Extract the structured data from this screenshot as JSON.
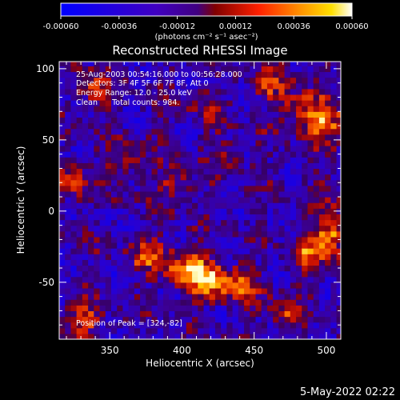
{
  "colorbar": {
    "ticks": [
      "-0.00060",
      "-0.00036",
      "-0.00012",
      "0.00012",
      "0.00036",
      "0.00060"
    ],
    "range": [
      -0.0006,
      0.0006
    ],
    "unit": "(photons cm⁻² s⁻¹ asec⁻²)"
  },
  "chart_data": {
    "type": "heatmap",
    "title": "Reconstructed RHESSI Image",
    "xlabel": "Heliocentric X (arcsec)",
    "ylabel": "Heliocentric Y (arcsec)",
    "xlim": [
      315,
      510
    ],
    "ylim": [
      -90,
      105
    ],
    "xticks": [
      350,
      400,
      450,
      500
    ],
    "yticks": [
      -50,
      0,
      50,
      100
    ],
    "annotations": [
      "25-Aug-2003 00:54:16.000 to 00:56:28.000",
      "Detectors: 3F 4F 5F 6F 7F 8F, Att 0",
      "Energy Range: 12.0 - 25.0 keV",
      "Clean      Total counts: 984."
    ],
    "peak_text": "Position of Peak = [324,-82]",
    "peak": [
      324,
      -82
    ],
    "hotspots": [
      {
        "x": 418,
        "y": -48,
        "value": 0.0006
      },
      {
        "x": 402,
        "y": -40,
        "value": 0.00052
      },
      {
        "x": 440,
        "y": -52,
        "value": 0.0004
      },
      {
        "x": 378,
        "y": -30,
        "value": 0.0004
      },
      {
        "x": 500,
        "y": 62,
        "value": 0.00055
      },
      {
        "x": 483,
        "y": 72,
        "value": 0.00038
      },
      {
        "x": 505,
        "y": -18,
        "value": 0.0005
      },
      {
        "x": 488,
        "y": -30,
        "value": 0.00036
      },
      {
        "x": 325,
        "y": 20,
        "value": 0.00036
      },
      {
        "x": 330,
        "y": -78,
        "value": 0.0004
      },
      {
        "x": 340,
        "y": 86,
        "value": 0.00032
      },
      {
        "x": 462,
        "y": 90,
        "value": 0.0003
      },
      {
        "x": 395,
        "y": 18,
        "value": 0.00028
      },
      {
        "x": 360,
        "y": 35,
        "value": 0.00024
      },
      {
        "x": 470,
        "y": -72,
        "value": 0.0003
      },
      {
        "x": 430,
        "y": 40,
        "value": 0.00022
      },
      {
        "x": 415,
        "y": 75,
        "value": 0.00018
      },
      {
        "x": 505,
        "y": 10,
        "value": 0.00025
      }
    ]
  },
  "timestamp": "5-May-2022 02:22"
}
